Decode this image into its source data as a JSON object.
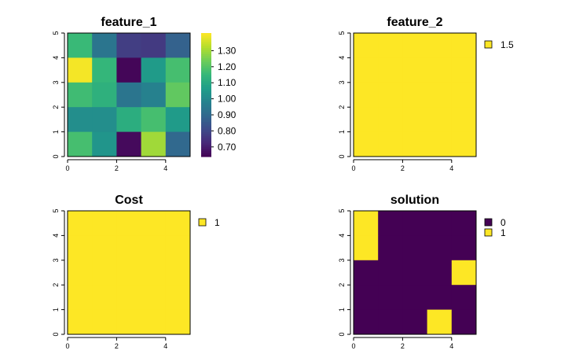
{
  "chart_data": [
    {
      "type": "heatmap",
      "title": "feature_1",
      "xlabel": "",
      "ylabel": "",
      "xlim": [
        0,
        5
      ],
      "ylim": [
        0,
        5
      ],
      "x_ticks": [
        "0",
        "2",
        "4"
      ],
      "y_ticks": [
        "0",
        "1",
        "2",
        "3",
        "4",
        "5"
      ],
      "legend": {
        "type": "continuous",
        "min": 0.64,
        "max": 1.41,
        "ticks": [
          "0.70",
          "0.80",
          "0.90",
          "1.00",
          "1.10",
          "1.20",
          "1.30"
        ],
        "placement": "right"
      },
      "rows_top_to_bottom": [
        [
          1.16,
          0.94,
          0.78,
          0.77,
          0.88
        ],
        [
          1.4,
          1.15,
          0.65,
          1.06,
          1.18
        ],
        [
          1.17,
          1.13,
          0.94,
          0.98,
          1.22
        ],
        [
          1.02,
          1.02,
          1.12,
          1.18,
          1.06
        ],
        [
          1.18,
          1.04,
          0.66,
          1.3,
          0.9
        ]
      ]
    },
    {
      "type": "heatmap",
      "title": "feature_2",
      "xlim": [
        0,
        5
      ],
      "ylim": [
        0,
        5
      ],
      "x_ticks": [
        "0",
        "2",
        "4"
      ],
      "y_ticks": [
        "0",
        "1",
        "2",
        "3",
        "4",
        "5"
      ],
      "legend": {
        "type": "categorical",
        "entries": [
          {
            "label": "1.5",
            "color": "#FDE725"
          }
        ],
        "placement": "right"
      },
      "rows_top_to_bottom": [
        [
          1.5,
          1.5,
          1.5,
          1.5,
          1.5
        ],
        [
          1.5,
          1.5,
          1.5,
          1.5,
          1.5
        ],
        [
          1.5,
          1.5,
          1.5,
          1.5,
          1.5
        ],
        [
          1.5,
          1.5,
          1.5,
          1.5,
          1.5
        ],
        [
          1.5,
          1.5,
          1.5,
          1.5,
          1.5
        ]
      ]
    },
    {
      "type": "heatmap",
      "title": "Cost",
      "xlim": [
        0,
        5
      ],
      "ylim": [
        0,
        5
      ],
      "x_ticks": [
        "0",
        "2",
        "4"
      ],
      "y_ticks": [
        "0",
        "1",
        "2",
        "3",
        "4",
        "5"
      ],
      "legend": {
        "type": "categorical",
        "entries": [
          {
            "label": "1",
            "color": "#FDE725"
          }
        ],
        "placement": "right"
      },
      "rows_top_to_bottom": [
        [
          1,
          1,
          1,
          1,
          1
        ],
        [
          1,
          1,
          1,
          1,
          1
        ],
        [
          1,
          1,
          1,
          1,
          1
        ],
        [
          1,
          1,
          1,
          1,
          1
        ],
        [
          1,
          1,
          1,
          1,
          1
        ]
      ]
    },
    {
      "type": "heatmap",
      "title": "solution",
      "xlim": [
        0,
        5
      ],
      "ylim": [
        0,
        5
      ],
      "x_ticks": [
        "0",
        "2",
        "4"
      ],
      "y_ticks": [
        "0",
        "1",
        "2",
        "3",
        "4",
        "5"
      ],
      "legend": {
        "type": "categorical",
        "entries": [
          {
            "label": "0",
            "color": "#440154"
          },
          {
            "label": "1",
            "color": "#FDE725"
          }
        ],
        "placement": "right"
      },
      "rows_top_to_bottom": [
        [
          1,
          0,
          0,
          0,
          0
        ],
        [
          1,
          0,
          0,
          0,
          0
        ],
        [
          0,
          0,
          0,
          0,
          1
        ],
        [
          0,
          0,
          0,
          0,
          0
        ],
        [
          0,
          0,
          0,
          1,
          0
        ]
      ]
    }
  ]
}
